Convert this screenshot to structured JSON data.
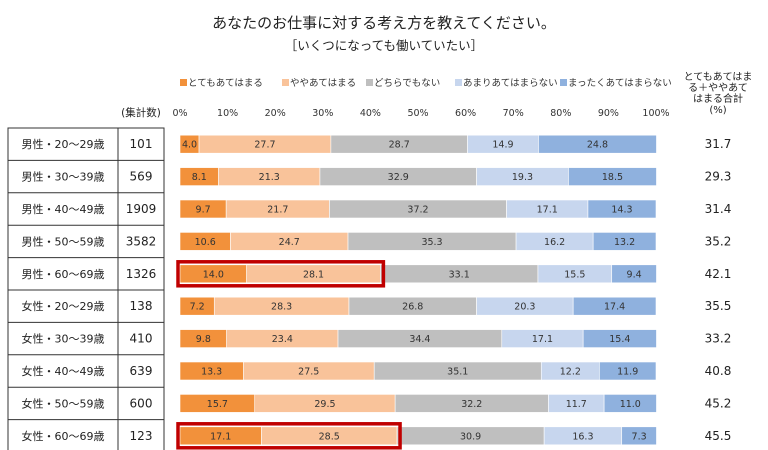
{
  "title": "あなたのお仕事に対する考え方を教えてください。",
  "subtitle": "［いくつになっても働いていたい］",
  "colors": {
    "highlight": "#c00000",
    "series": [
      "#f2913b",
      "#f9c39a",
      "#bfbfbf",
      "#c7d6ee",
      "#8fb1de"
    ]
  },
  "table_headers": {
    "count": "(集計数)",
    "total": "とてもあてはまる＋ややあてはまる合計(%)"
  },
  "total_header_lines": [
    "とてもあてはま",
    "る＋ややあて",
    "はまる合計",
    "(%)"
  ],
  "chart_data": {
    "type": "bar",
    "stacked": true,
    "horizontal": true,
    "unit": "%",
    "xlim": [
      0,
      100
    ],
    "ticks": [
      "0%",
      "10%",
      "20%",
      "30%",
      "40%",
      "50%",
      "60%",
      "70%",
      "80%",
      "90%",
      "100%"
    ],
    "legend_position": "top",
    "categories": [
      "男性・20～29歳",
      "男性・30～39歳",
      "男性・40～49歳",
      "男性・50～59歳",
      "男性・60～69歳",
      "女性・20～29歳",
      "女性・30～39歳",
      "女性・40～49歳",
      "女性・50～59歳",
      "女性・60～69歳"
    ],
    "counts": [
      "101",
      "569",
      "1909",
      "3582",
      "1326",
      "138",
      "410",
      "639",
      "600",
      "123"
    ],
    "totals": [
      "31.7",
      "29.3",
      "31.4",
      "35.2",
      "42.1",
      "35.5",
      "33.2",
      "40.8",
      "45.2",
      "45.5"
    ],
    "highlighted_rows": [
      4,
      9
    ],
    "series": [
      {
        "name": "とてもあてはまる",
        "values": [
          "4.0",
          "8.1",
          "9.7",
          "10.6",
          "14.0",
          "7.2",
          "9.8",
          "13.3",
          "15.7",
          "17.1"
        ]
      },
      {
        "name": "ややあてはまる",
        "values": [
          "27.7",
          "21.3",
          "21.7",
          "24.7",
          "28.1",
          "28.3",
          "23.4",
          "27.5",
          "29.5",
          "28.5"
        ]
      },
      {
        "name": "どちらでもない",
        "values": [
          "28.7",
          "32.9",
          "37.2",
          "35.3",
          "33.1",
          "26.8",
          "34.4",
          "35.1",
          "32.2",
          "30.9"
        ]
      },
      {
        "name": "あまりあてはまらない",
        "values": [
          "14.9",
          "19.3",
          "17.1",
          "16.2",
          "15.5",
          "20.3",
          "17.1",
          "12.2",
          "11.7",
          "16.3"
        ]
      },
      {
        "name": "まったくあてはまらない",
        "values": [
          "24.8",
          "18.5",
          "14.3",
          "13.2",
          "9.4",
          "17.4",
          "15.4",
          "11.9",
          "11.0",
          "7.3"
        ]
      }
    ]
  }
}
